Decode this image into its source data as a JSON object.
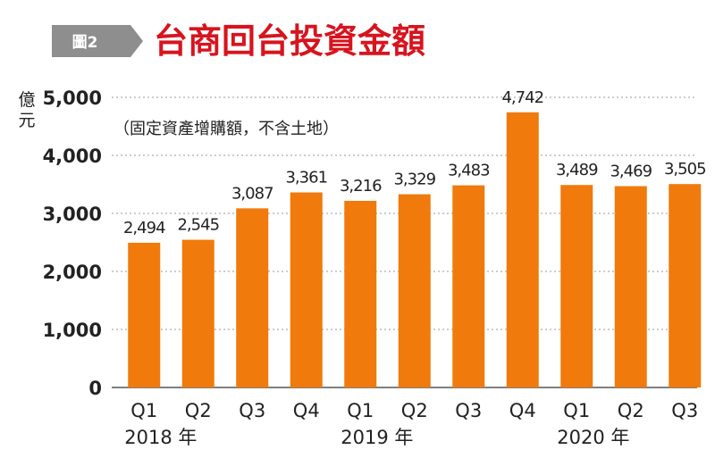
{
  "figure_badge": "圖2",
  "title": "台商回台投資金額",
  "subtitle": "（固定資產增購額，不含土地）",
  "colors": {
    "bar": "#F07A0C",
    "title": "#D7141E",
    "badge": "#8E8E8E",
    "grid": "#9A9A9A",
    "text": "#222222"
  },
  "chart_data": {
    "type": "bar",
    "title": "台商回台投資金額",
    "subtitle": "（固定資產增購額，不含土地）",
    "ylabel": "億元",
    "ylim": [
      0,
      5000
    ],
    "yticks": [
      0,
      1000,
      2000,
      3000,
      4000,
      5000
    ],
    "ytick_labels": [
      "0",
      "1,000",
      "2,000",
      "3,000",
      "4,000",
      "5,000"
    ],
    "grid": true,
    "categories": [
      "Q1",
      "Q2",
      "Q3",
      "Q4",
      "Q1",
      "Q2",
      "Q3",
      "Q4",
      "Q1",
      "Q2",
      "Q3"
    ],
    "year_labels": [
      "2018 年",
      "2019 年",
      "2020 年"
    ],
    "values": [
      2494,
      2545,
      3087,
      3361,
      3216,
      3329,
      3483,
      4742,
      3489,
      3469,
      3505
    ],
    "value_labels": [
      "2,494",
      "2,545",
      "3,087",
      "3,361",
      "3,216",
      "3,329",
      "3,483",
      "4,742",
      "3,489",
      "3,469",
      "3,505"
    ]
  }
}
